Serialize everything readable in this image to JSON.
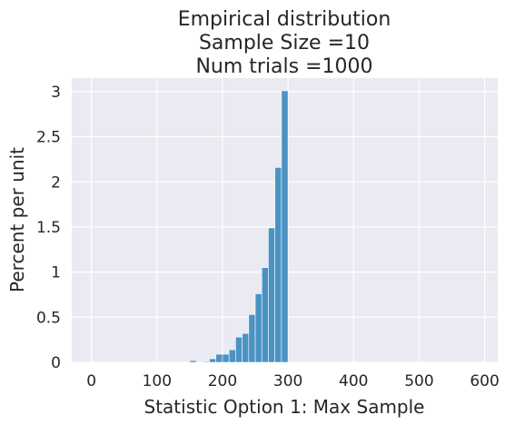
{
  "chart_data": {
    "type": "bar",
    "title": [
      "Empirical distribution",
      "Sample Size =10",
      "Num trials =1000"
    ],
    "xlabel": "Statistic Option 1: Max Sample",
    "ylabel": "Percent per unit",
    "xlim": [
      -30,
      620
    ],
    "ylim": [
      0,
      3.15
    ],
    "xticks": [
      0,
      100,
      200,
      300,
      400,
      500,
      600
    ],
    "yticks": [
      0,
      0.5,
      1,
      1.5,
      2,
      2.5,
      3
    ],
    "ytick_labels": [
      "0",
      "0.5",
      "1",
      "1.5",
      "2",
      "2.5",
      "3"
    ],
    "grid": true,
    "legend": "none",
    "bin_width": 10,
    "bins": [
      {
        "x": 150,
        "value": 0.02
      },
      {
        "x": 160,
        "value": 0.0
      },
      {
        "x": 170,
        "value": 0.01
      },
      {
        "x": 180,
        "value": 0.04
      },
      {
        "x": 190,
        "value": 0.09
      },
      {
        "x": 200,
        "value": 0.09
      },
      {
        "x": 210,
        "value": 0.14
      },
      {
        "x": 220,
        "value": 0.28
      },
      {
        "x": 230,
        "value": 0.32
      },
      {
        "x": 240,
        "value": 0.53
      },
      {
        "x": 250,
        "value": 0.76
      },
      {
        "x": 260,
        "value": 1.05
      },
      {
        "x": 270,
        "value": 1.49
      },
      {
        "x": 280,
        "value": 2.16
      },
      {
        "x": 290,
        "value": 3.01
      }
    ],
    "colors": {
      "bar": "#4b93c3",
      "background": "#eaeaf2",
      "grid": "#ffffff"
    }
  }
}
